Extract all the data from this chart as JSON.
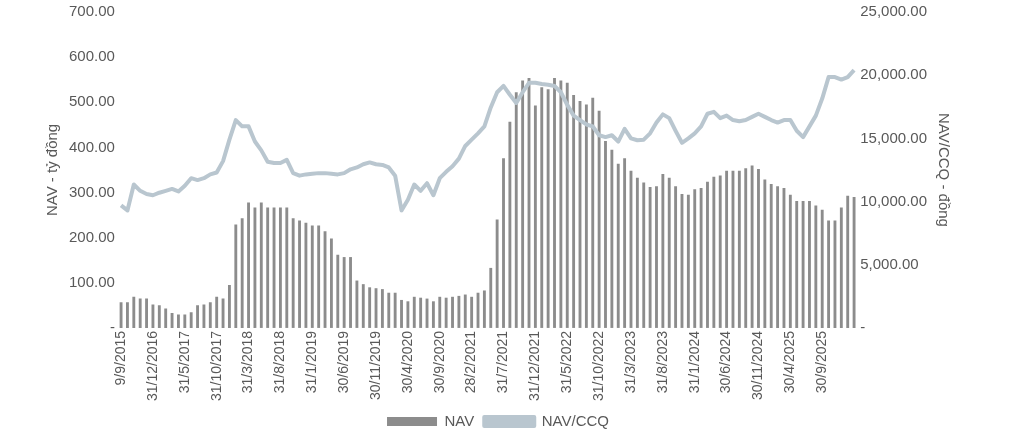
{
  "chart_data": {
    "type": "bar",
    "categories": [
      "9/9/2015",
      null,
      null,
      null,
      null,
      "31/12/2016",
      null,
      null,
      null,
      null,
      "31/5/2017",
      null,
      null,
      null,
      null,
      "31/10/2017",
      null,
      null,
      null,
      null,
      "31/3/2018",
      null,
      null,
      null,
      null,
      "31/8/2018",
      null,
      null,
      null,
      null,
      "31/1/2019",
      null,
      null,
      null,
      null,
      "30/6/2019",
      null,
      null,
      null,
      null,
      "30/11/2019",
      null,
      null,
      null,
      null,
      "30/4/2020",
      null,
      null,
      null,
      null,
      "30/9/2020",
      null,
      null,
      null,
      null,
      "28/2/2021",
      null,
      null,
      null,
      null,
      "31/7/2021",
      null,
      null,
      null,
      null,
      "31/12/2021",
      null,
      null,
      null,
      null,
      "31/5/2022",
      null,
      null,
      null,
      null,
      "31/10/2022",
      null,
      null,
      null,
      null,
      "31/3/2023",
      null,
      null,
      null,
      null,
      "31/8/2023",
      null,
      null,
      null,
      null,
      "31/1/2024",
      null,
      null,
      null,
      null,
      "30/6/2024",
      null,
      null,
      null,
      null,
      "30/11/2024",
      null,
      null,
      null,
      null,
      "30/4/2025",
      null,
      null,
      null,
      null,
      "30/9/2025",
      null,
      null,
      null,
      null,
      null
    ],
    "series": [
      {
        "name": "NAV",
        "color": "#8c8c8c",
        "values": [
          57,
          57,
          69,
          65,
          65,
          52,
          50,
          43,
          33,
          30,
          30,
          35,
          50,
          52,
          57,
          69,
          65,
          95,
          229,
          243,
          278,
          267,
          278,
          267,
          267,
          267,
          267,
          243,
          238,
          233,
          227,
          227,
          214,
          198,
          162,
          157,
          157,
          105,
          97,
          90,
          88,
          86,
          78,
          78,
          62,
          59,
          69,
          67,
          65,
          59,
          69,
          67,
          69,
          71,
          74,
          69,
          78,
          83,
          133,
          240,
          376,
          457,
          522,
          548,
          554,
          493,
          533,
          529,
          554,
          548,
          543,
          516,
          503,
          495,
          510,
          481,
          414,
          395,
          364,
          376,
          348,
          333,
          322,
          312,
          314,
          341,
          333,
          314,
          297,
          295,
          307,
          310,
          324,
          335,
          338,
          348,
          348,
          348,
          354,
          360,
          352,
          329,
          319,
          314,
          310,
          295,
          281,
          281,
          281,
          271,
          262,
          238,
          238,
          267,
          293,
          290
        ]
      },
      {
        "name": "NAV/CCQ",
        "type": "line",
        "axis": "y2",
        "color": "#b9c6cf",
        "values": [
          9700,
          9300,
          11350,
          10850,
          10600,
          10500,
          10700,
          10850,
          11000,
          10800,
          11250,
          11850,
          11700,
          11850,
          12150,
          12300,
          13200,
          14900,
          16450,
          15950,
          15950,
          14750,
          14050,
          13150,
          13050,
          13050,
          13300,
          12250,
          12050,
          12150,
          12200,
          12250,
          12250,
          12200,
          12150,
          12250,
          12550,
          12700,
          12950,
          13100,
          12950,
          12900,
          12700,
          12050,
          9300,
          10150,
          11350,
          10850,
          11450,
          10500,
          11850,
          12350,
          12800,
          13400,
          14400,
          14900,
          15400,
          15950,
          17450,
          18650,
          19150,
          18450,
          17800,
          18650,
          19400,
          19400,
          19300,
          19250,
          19150,
          18650,
          17650,
          16800,
          16450,
          16100,
          15950,
          15250,
          15100,
          15250,
          14750,
          15750,
          15000,
          14850,
          14900,
          15400,
          16250,
          16900,
          16600,
          15600,
          14650,
          15000,
          15400,
          15950,
          16950,
          17100,
          16600,
          16800,
          16450,
          16350,
          16450,
          16700,
          16950,
          16700,
          16450,
          16250,
          16450,
          16450,
          15600,
          15100,
          15950,
          16800,
          18150,
          19850,
          19850,
          19650,
          19850,
          20400
        ]
      }
    ],
    "ylabel": "NAV - tỷ đồng",
    "y2label": "NAV/CCQ - đồng",
    "ylim": [
      0,
      700
    ],
    "yticks": [
      {
        "value": 0,
        "label": "-"
      },
      {
        "value": 100,
        "label": "100.00"
      },
      {
        "value": 200,
        "label": "200.00"
      },
      {
        "value": 300,
        "label": "300.00"
      },
      {
        "value": 400,
        "label": "400.00"
      },
      {
        "value": 500,
        "label": "500.00"
      },
      {
        "value": 600,
        "label": "600.00"
      },
      {
        "value": 700,
        "label": "700.00"
      }
    ],
    "y2lim": [
      0,
      25000
    ],
    "y2ticks": [
      {
        "value": 0,
        "label": "-"
      },
      {
        "value": 5000,
        "label": "5,000.00"
      },
      {
        "value": 10000,
        "label": "10,000.00"
      },
      {
        "value": 15000,
        "label": "15,000.00"
      },
      {
        "value": 20000,
        "label": "20,000.00"
      },
      {
        "value": 25000,
        "label": "25,000.00"
      }
    ],
    "grid": false,
    "legend": "bottom"
  }
}
